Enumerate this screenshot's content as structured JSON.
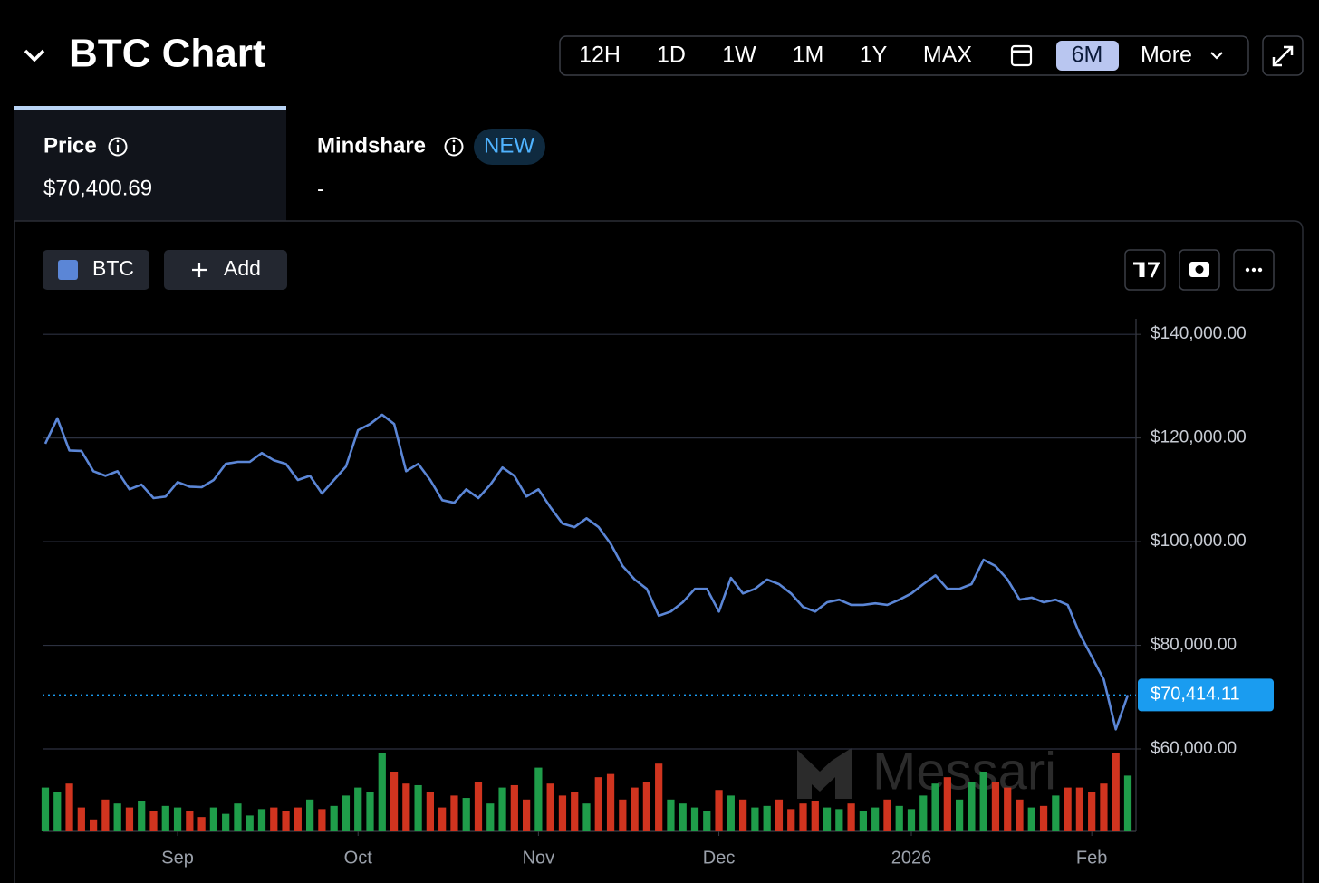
{
  "header": {
    "title": "BTC Chart",
    "ranges": [
      "12H",
      "1D",
      "1W",
      "1M",
      "1Y",
      "MAX"
    ],
    "active_range": "6M",
    "more": "More"
  },
  "tabs": {
    "price": {
      "label": "Price",
      "value": "$70,400.69"
    },
    "mindshare": {
      "label": "Mindshare",
      "badge": "NEW",
      "value": "-"
    }
  },
  "toolbar": {
    "asset": "BTC",
    "add": "Add"
  },
  "watermark": "Messari",
  "chart_data": {
    "type": "line",
    "categories": [
      null,
      null,
      null,
      null,
      null,
      null,
      null,
      null,
      null,
      null,
      null,
      "Sep",
      null,
      null,
      null,
      null,
      null,
      null,
      null,
      null,
      null,
      null,
      null,
      null,
      null,
      null,
      "Oct",
      null,
      null,
      null,
      null,
      null,
      null,
      null,
      null,
      null,
      null,
      null,
      null,
      null,
      null,
      "Nov",
      null,
      null,
      null,
      null,
      null,
      null,
      null,
      null,
      null,
      null,
      null,
      null,
      null,
      null,
      "Dec",
      null,
      null,
      null,
      null,
      null,
      null,
      null,
      null,
      null,
      null,
      null,
      null,
      null,
      null,
      null,
      "2026",
      null,
      null,
      null,
      null,
      null,
      null,
      null,
      null,
      null,
      null,
      null,
      null,
      null,
      null,
      "Feb",
      null,
      null,
      null
    ],
    "series": [
      {
        "name": "BTC",
        "color": "#5b86d6",
        "values": [
          118900,
          123800,
          117600,
          117500,
          113600,
          112700,
          113600,
          110100,
          111000,
          108400,
          108700,
          111500,
          110600,
          110500,
          111900,
          115000,
          115400,
          115400,
          117100,
          115700,
          115000,
          111900,
          112700,
          109300,
          111900,
          114500,
          121500,
          122700,
          124500,
          122700,
          113600,
          115000,
          111900,
          108000,
          107500,
          110100,
          108400,
          111000,
          114300,
          112700,
          108700,
          110100,
          106600,
          103500,
          102800,
          104500,
          102800,
          99600,
          95300,
          92700,
          90900,
          85700,
          86500,
          88300,
          90900,
          90900,
          86500,
          93000,
          90000,
          90900,
          92700,
          91800,
          90000,
          87400,
          86500,
          88300,
          88800,
          87800,
          87800,
          88100,
          87800,
          88800,
          90000,
          91800,
          93500,
          90900,
          90900,
          91800,
          96500,
          95300,
          92700,
          88800,
          89200,
          88300,
          88800,
          87800,
          82200,
          77800,
          73400,
          63800,
          70400
        ]
      }
    ],
    "ylim": [
      44100,
      143000
    ],
    "yticks": [
      {
        "value": 60000,
        "label": "$60,000.00"
      },
      {
        "value": 80000,
        "label": "$80,000.00"
      },
      {
        "value": 100000,
        "label": "$100,000.00"
      },
      {
        "value": 120000,
        "label": "$120,000.00"
      },
      {
        "value": 140000,
        "label": "$140,000.00"
      }
    ],
    "grid": true,
    "current": {
      "value": 70414.11,
      "label": "$70,414.11",
      "color": "#1a9cf0"
    },
    "volume": {
      "up_color": "#1f9d4a",
      "down_color": "#d0341f",
      "ylim": [
        0,
        100
      ],
      "values": [
        55,
        50,
        60,
        30,
        15,
        40,
        35,
        30,
        38,
        25,
        32,
        30,
        25,
        18,
        30,
        22,
        35,
        20,
        28,
        30,
        25,
        30,
        40,
        28,
        32,
        45,
        55,
        50,
        98,
        75,
        60,
        58,
        50,
        30,
        45,
        42,
        62,
        35,
        55,
        58,
        40,
        80,
        60,
        45,
        50,
        35,
        68,
        72,
        40,
        55,
        62,
        85,
        40,
        35,
        30,
        25,
        52,
        45,
        40,
        30,
        32,
        40,
        28,
        35,
        38,
        30,
        28,
        35,
        25,
        30,
        40,
        32,
        28,
        45,
        60,
        68,
        40,
        62,
        75,
        62,
        55,
        40,
        30,
        32,
        45,
        55,
        55,
        50,
        60,
        98,
        70
      ]
    }
  }
}
